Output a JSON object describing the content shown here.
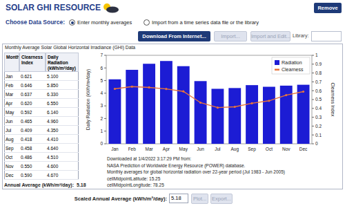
{
  "header": {
    "title": "SOLAR GHI RESOURCE",
    "remove": "Remove"
  },
  "source": {
    "label": "Choose Data Source:",
    "options": [
      {
        "text": "Enter monthly averages",
        "selected": true
      },
      {
        "text": "Import from a time series data file or the library",
        "selected": false
      }
    ]
  },
  "buttons": [
    "Download From Internet...",
    "Import...",
    "Import and Edit..."
  ],
  "library_label": "Library:",
  "panel_title": "Monthly Average Solar Global Horizontal Irradiance (GHI) Data",
  "table": {
    "header": [
      "Month",
      "Clearness Index",
      "Daily Radiation (kWh/m²/day)"
    ],
    "rows": [
      [
        "Jan",
        "0.621",
        "5.100"
      ],
      [
        "Feb",
        "0.646",
        "5.850"
      ],
      [
        "Mar",
        "0.637",
        "6.330"
      ],
      [
        "Apr",
        "0.620",
        "6.550"
      ],
      [
        "May",
        "0.592",
        "6.140"
      ],
      [
        "Jun",
        "0.465",
        "4.960"
      ],
      [
        "Jul",
        "0.409",
        "4.350"
      ],
      [
        "Aug",
        "0.418",
        "4.410"
      ],
      [
        "Sep",
        "0.458",
        "4.640"
      ],
      [
        "Oct",
        "0.486",
        "4.510"
      ],
      [
        "Nov",
        "0.550",
        "4.600"
      ],
      [
        "Dec",
        "0.590",
        "4.670"
      ]
    ]
  },
  "annual_average": {
    "label": "Annual Average (kWh/m²/day):",
    "value": "5.18"
  },
  "notes": [
    "Downloaded at 1/4/2022 3:17:29 PM from:",
    "NASA Prediction of Worldwide Energy Resource (POWER) database.",
    "Monthly averages for global horizontal radiation over 22-year period (Jul 1983 - Jun 2005)",
    "cellMidpointLatitude: 15.25",
    "cellMidpointLongitude: 78.25"
  ],
  "scaled": {
    "label": "Scaled Annual Average (kWh/m²/day):",
    "value": "5.18",
    "buttons": [
      "Plot...",
      "Export..."
    ]
  },
  "chart_data": {
    "type": "bar",
    "y_label": "Daily Radiation (kWh/m²/day)",
    "y2_label": "Clearness Index",
    "categories": [
      "Jan",
      "Feb",
      "Mar",
      "Apr",
      "May",
      "Jun",
      "Jul",
      "Aug",
      "Sep",
      "Oct",
      "Nov",
      "Dec"
    ],
    "series": [
      {
        "name": "Radiation",
        "type": "bar",
        "color": "#1c1cd4",
        "values": [
          5.1,
          5.85,
          6.33,
          6.55,
          6.14,
          4.96,
          4.35,
          4.41,
          4.64,
          4.51,
          4.6,
          4.67
        ]
      },
      {
        "name": "Clearness",
        "type": "line",
        "axis": "y2",
        "color": "#e8743b",
        "marker": "circle",
        "values": [
          0.621,
          0.646,
          0.637,
          0.62,
          0.592,
          0.465,
          0.409,
          0.418,
          0.458,
          0.486,
          0.55,
          0.59
        ]
      }
    ],
    "ylim": [
      0,
      7
    ],
    "yticks": [
      0,
      1,
      2,
      3,
      4,
      5,
      6,
      7
    ],
    "y2lim": [
      0,
      1
    ],
    "y2ticks": [
      0,
      0.1,
      0.2,
      0.3,
      0.4,
      0.5,
      0.6,
      0.7,
      0.8,
      0.9,
      1
    ],
    "legend": "top-right",
    "grid": false
  }
}
